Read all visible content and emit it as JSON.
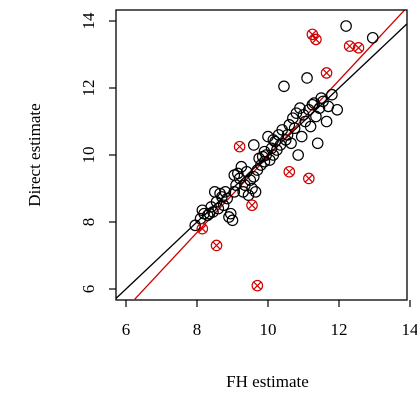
{
  "chart_data": {
    "type": "scatter",
    "xlabel": "FH estimate",
    "ylabel": "Direct estimate",
    "xlim": [
      6,
      14
    ],
    "ylim": [
      6,
      14
    ],
    "x_ticks": [
      6,
      8,
      10,
      12,
      14
    ],
    "y_ticks": [
      6,
      8,
      10,
      12,
      14
    ],
    "grid": false,
    "colors": {
      "open_points": "#000000",
      "crossed_points": "#d00000",
      "identity_line": "#000000",
      "fit_line": "#d00000"
    },
    "reference_lines": [
      {
        "kind": "identity",
        "color": "#000000",
        "points": [
          [
            5.5,
            5.5
          ],
          [
            14.5,
            14.5
          ]
        ]
      },
      {
        "kind": "fit",
        "color": "#d00000",
        "points": [
          [
            6.25,
            5.7
          ],
          [
            14.0,
            14.5
          ]
        ]
      }
    ],
    "series": [
      {
        "marker": "open-circle",
        "color": "#000000",
        "points": [
          [
            7.95,
            7.9
          ],
          [
            8.1,
            8.1
          ],
          [
            8.2,
            8.25
          ],
          [
            8.15,
            8.35
          ],
          [
            8.3,
            8.2
          ],
          [
            8.45,
            8.3
          ],
          [
            8.4,
            8.45
          ],
          [
            8.55,
            8.6
          ],
          [
            8.6,
            8.4
          ],
          [
            8.5,
            8.9
          ],
          [
            8.65,
            8.85
          ],
          [
            8.8,
            8.9
          ],
          [
            8.9,
            8.15
          ],
          [
            8.95,
            8.25
          ],
          [
            9.0,
            8.05
          ],
          [
            8.75,
            8.5
          ],
          [
            8.85,
            8.7
          ],
          [
            9.05,
            8.9
          ],
          [
            9.1,
            9.1
          ],
          [
            9.2,
            9.3
          ],
          [
            9.3,
            8.9
          ],
          [
            9.35,
            9.1
          ],
          [
            9.4,
            9.5
          ],
          [
            9.45,
            8.8
          ],
          [
            9.5,
            9.25
          ],
          [
            9.55,
            9.0
          ],
          [
            9.6,
            9.35
          ],
          [
            9.65,
            8.9
          ],
          [
            9.7,
            9.55
          ],
          [
            9.75,
            9.9
          ],
          [
            9.8,
            9.7
          ],
          [
            9.85,
            9.95
          ],
          [
            9.9,
            9.8
          ],
          [
            9.95,
            10.0
          ],
          [
            10.0,
            10.55
          ],
          [
            10.05,
            9.85
          ],
          [
            10.1,
            10.2
          ],
          [
            10.15,
            10.0
          ],
          [
            10.2,
            10.4
          ],
          [
            10.25,
            10.15
          ],
          [
            10.3,
            10.6
          ],
          [
            10.35,
            10.3
          ],
          [
            10.4,
            10.75
          ],
          [
            10.45,
            12.05
          ],
          [
            10.5,
            10.45
          ],
          [
            10.6,
            10.9
          ],
          [
            10.65,
            10.35
          ],
          [
            10.7,
            11.1
          ],
          [
            10.75,
            10.8
          ],
          [
            10.8,
            11.25
          ],
          [
            10.85,
            10.0
          ],
          [
            10.9,
            11.4
          ],
          [
            10.95,
            10.55
          ],
          [
            11.0,
            11.2
          ],
          [
            11.05,
            11.0
          ],
          [
            11.1,
            12.3
          ],
          [
            11.15,
            11.35
          ],
          [
            11.2,
            10.85
          ],
          [
            11.25,
            11.5
          ],
          [
            11.3,
            11.55
          ],
          [
            11.35,
            11.15
          ],
          [
            11.4,
            10.35
          ],
          [
            11.45,
            11.4
          ],
          [
            11.5,
            11.7
          ],
          [
            11.55,
            11.6
          ],
          [
            11.65,
            11.0
          ],
          [
            11.7,
            11.45
          ],
          [
            11.8,
            11.8
          ],
          [
            11.95,
            11.35
          ],
          [
            12.2,
            13.85
          ],
          [
            12.95,
            13.5
          ],
          [
            9.6,
            10.3
          ],
          [
            9.15,
            9.45
          ],
          [
            9.25,
            9.65
          ],
          [
            8.7,
            8.75
          ],
          [
            9.05,
            9.4
          ],
          [
            8.35,
            8.25
          ],
          [
            10.55,
            10.6
          ],
          [
            10.15,
            10.45
          ],
          [
            9.9,
            10.1
          ]
        ]
      },
      {
        "marker": "crossed-circle",
        "color": "#d00000",
        "points": [
          [
            8.15,
            7.8
          ],
          [
            8.55,
            7.3
          ],
          [
            9.2,
            10.25
          ],
          [
            9.55,
            8.5
          ],
          [
            9.7,
            6.1
          ],
          [
            10.6,
            9.5
          ],
          [
            11.15,
            9.3
          ],
          [
            11.25,
            13.6
          ],
          [
            11.35,
            13.45
          ],
          [
            11.65,
            12.45
          ],
          [
            12.3,
            13.25
          ],
          [
            12.55,
            13.2
          ]
        ]
      }
    ]
  }
}
